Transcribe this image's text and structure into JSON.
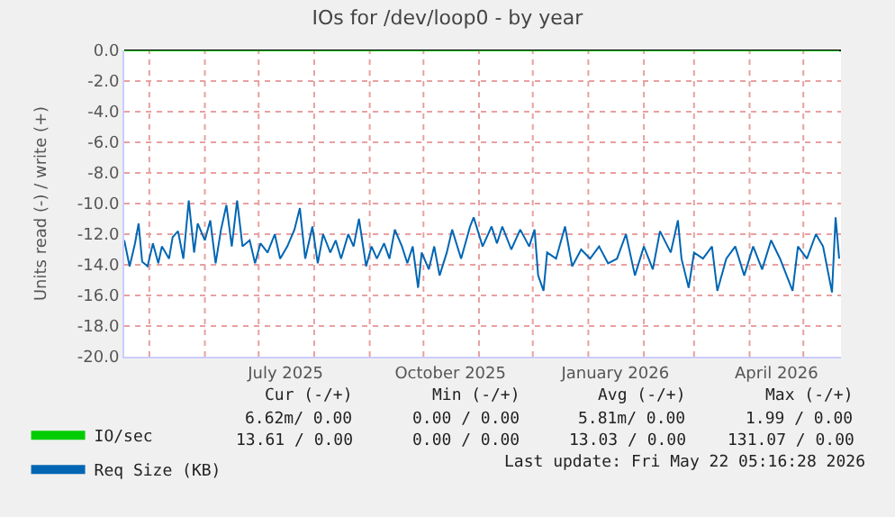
{
  "chart_data": {
    "type": "line",
    "title": "IOs for /dev/loop0 - by year",
    "ylabel": "Units read (-) / write (+)",
    "xlim": [
      "2025-04-17",
      "2026-05-22"
    ],
    "xticks": [
      {
        "value": "2025-05-01",
        "label": null
      },
      {
        "value": "2025-06-01",
        "label": null
      },
      {
        "value": "2025-07-01",
        "label": null
      },
      {
        "value": "2025-07-16",
        "label": "July 2025"
      },
      {
        "value": "2025-08-01",
        "label": null
      },
      {
        "value": "2025-09-01",
        "label": null
      },
      {
        "value": "2025-10-01",
        "label": null
      },
      {
        "value": "2025-10-16",
        "label": "October 2025"
      },
      {
        "value": "2025-11-01",
        "label": null
      },
      {
        "value": "2025-12-01",
        "label": null
      },
      {
        "value": "2026-01-01",
        "label": null
      },
      {
        "value": "2026-01-16",
        "label": "January 2026"
      },
      {
        "value": "2026-02-01",
        "label": null
      },
      {
        "value": "2026-03-01",
        "label": null
      },
      {
        "value": "2026-04-01",
        "label": null
      },
      {
        "value": "2026-04-16",
        "label": "April 2026"
      },
      {
        "value": "2026-05-01",
        "label": null
      }
    ],
    "ylim": [
      -20,
      0
    ],
    "yticks": [
      {
        "value": 0,
        "label": "0.0"
      },
      {
        "value": -2,
        "label": "-2.0"
      },
      {
        "value": -4,
        "label": "-4.0"
      },
      {
        "value": -6,
        "label": "-6.0"
      },
      {
        "value": -8,
        "label": "-8.0"
      },
      {
        "value": -10,
        "label": "-10.0"
      },
      {
        "value": -12,
        "label": "-12.0"
      },
      {
        "value": -14,
        "label": "-14.0"
      },
      {
        "value": -16,
        "label": "-16.0"
      },
      {
        "value": -18,
        "label": "-18.0"
      },
      {
        "value": -20,
        "label": "-20.0"
      }
    ],
    "grid": true,
    "legend": "bottom left",
    "marker": "none",
    "line_style": "solid",
    "series": [
      {
        "name": "IO/sec",
        "color": "#00cc00",
        "x": [
          "2025-04-17",
          "2026-05-21"
        ],
        "values": [
          0,
          0
        ]
      },
      {
        "name": "Req Size (KB)",
        "color": "#0066b3",
        "x": [
          "2025-04-17",
          "2025-04-20",
          "2025-04-23",
          "2025-04-25",
          "2025-04-27",
          "2025-04-30",
          "2025-05-03",
          "2025-05-06",
          "2025-05-08",
          "2025-05-12",
          "2025-05-14",
          "2025-05-17",
          "2025-05-20",
          "2025-05-23",
          "2025-05-26",
          "2025-05-28",
          "2025-06-01",
          "2025-06-04",
          "2025-06-07",
          "2025-06-10",
          "2025-06-13",
          "2025-06-16",
          "2025-06-19",
          "2025-06-22",
          "2025-06-26",
          "2025-06-29",
          "2025-07-02",
          "2025-07-06",
          "2025-07-10",
          "2025-07-13",
          "2025-07-17",
          "2025-07-21",
          "2025-07-24",
          "2025-07-27",
          "2025-07-31",
          "2025-08-03",
          "2025-08-06",
          "2025-08-10",
          "2025-08-13",
          "2025-08-16",
          "2025-08-20",
          "2025-08-23",
          "2025-08-26",
          "2025-08-30",
          "2025-09-02",
          "2025-09-05",
          "2025-09-09",
          "2025-09-12",
          "2025-09-15",
          "2025-09-19",
          "2025-09-22",
          "2025-09-25",
          "2025-09-28",
          "2025-09-30",
          "2025-10-04",
          "2025-10-07",
          "2025-10-10",
          "2025-10-14",
          "2025-10-17",
          "2025-10-22",
          "2025-10-27",
          "2025-10-29",
          "2025-11-03",
          "2025-11-08",
          "2025-11-11",
          "2025-11-14",
          "2025-11-19",
          "2025-11-24",
          "2025-11-29",
          "2025-12-02",
          "2025-12-04",
          "2025-12-07",
          "2025-12-09",
          "2025-12-14",
          "2025-12-19",
          "2025-12-23",
          "2025-12-28",
          "2026-01-02",
          "2026-01-07",
          "2026-01-12",
          "2026-01-17",
          "2026-01-22",
          "2026-01-27",
          "2026-02-01",
          "2026-02-06",
          "2026-02-10",
          "2026-02-16",
          "2026-02-20",
          "2026-02-22",
          "2026-02-26",
          "2026-03-01",
          "2026-03-06",
          "2026-03-11",
          "2026-03-14",
          "2026-03-19",
          "2026-03-24",
          "2026-03-29",
          "2026-04-03",
          "2026-04-08",
          "2026-04-13",
          "2026-04-18",
          "2026-04-25",
          "2026-04-28",
          "2026-05-03",
          "2026-05-08",
          "2026-05-12",
          "2026-05-17",
          "2026-05-19",
          "2026-05-21"
        ],
        "values": [
          -12.4,
          -14.1,
          -12.6,
          -11.3,
          -13.8,
          -14.1,
          -12.6,
          -13.9,
          -12.8,
          -13.6,
          -12.2,
          -11.8,
          -13.6,
          -9.8,
          -13.2,
          -11.3,
          -12.4,
          -11.1,
          -13.9,
          -11.7,
          -10.1,
          -12.8,
          -9.8,
          -12.8,
          -12.4,
          -13.9,
          -12.6,
          -13.2,
          -12.0,
          -13.6,
          -12.8,
          -11.7,
          -10.3,
          -13.6,
          -11.5,
          -13.9,
          -12.0,
          -13.2,
          -12.4,
          -13.6,
          -12.0,
          -12.8,
          -11.0,
          -14.1,
          -12.8,
          -13.6,
          -12.6,
          -13.6,
          -11.7,
          -12.8,
          -13.9,
          -12.8,
          -15.5,
          -13.2,
          -14.3,
          -12.8,
          -14.7,
          -13.2,
          -11.7,
          -13.6,
          -11.5,
          -10.9,
          -12.8,
          -11.5,
          -12.6,
          -11.5,
          -13.0,
          -11.7,
          -12.8,
          -11.7,
          -14.7,
          -15.7,
          -13.2,
          -13.6,
          -11.5,
          -14.1,
          -13.0,
          -13.6,
          -12.8,
          -13.9,
          -13.6,
          -12.0,
          -14.7,
          -12.8,
          -14.3,
          -11.8,
          -13.2,
          -11.1,
          -13.6,
          -15.5,
          -13.2,
          -13.6,
          -12.8,
          -15.7,
          -13.6,
          -12.8,
          -14.7,
          -12.8,
          -14.3,
          -12.4,
          -13.6,
          -15.7,
          -12.8,
          -13.6,
          -12.0,
          -12.8,
          -15.8,
          -10.9,
          -13.6
        ]
      }
    ],
    "annotations": [
      "Cur (-/+)",
      "Min (-/+)",
      "Avg (-/+)",
      "Max (-/+)",
      "6.62m/ 0.00",
      "0.00 / 0.00",
      "5.81m/ 0.00",
      "1.99 / 0.00",
      "13.61 / 0.00",
      "0.00 / 0.00",
      "13.03 / 0.00",
      "131.07 / 0.00",
      "Last update: Fri May 22 05:16:28 2026"
    ]
  }
}
